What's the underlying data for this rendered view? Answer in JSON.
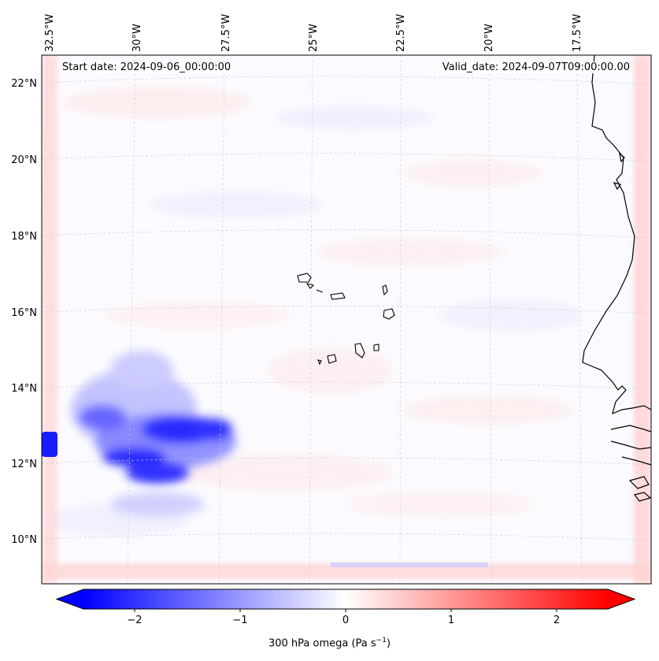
{
  "map": {
    "start_date": "Start date: 2024-09-06_00:00:00",
    "valid_date": "Valid_date: 2024-09-07T09:00:00.00",
    "lon_labels": [
      "32.5°W",
      "30°W",
      "27.5°W",
      "25°W",
      "22.5°W",
      "20°W",
      "17.5°W"
    ],
    "lat_labels": [
      "22°N",
      "20°N",
      "18°N",
      "16°N",
      "14°N",
      "12°N",
      "10°N"
    ],
    "colorbar": {
      "ticks": [
        "−2",
        "−1",
        "0",
        "1",
        "2"
      ],
      "label": "300 hPa omega (Pa s",
      "label_sup": "−1",
      "label_close": ")",
      "min": -2.7,
      "max": 2.7,
      "colors": {
        "neg": "#0000ff",
        "mid": "#ffffff",
        "pos": "#ff0000"
      }
    }
  }
}
